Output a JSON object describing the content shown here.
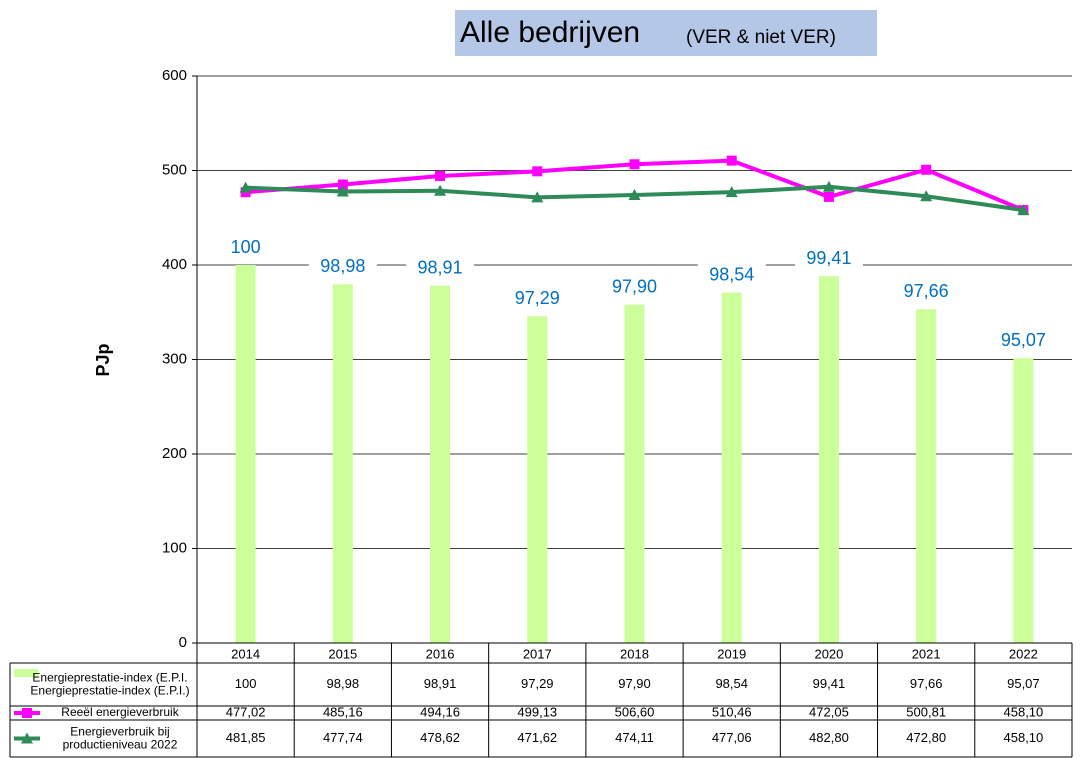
{
  "chart_data": {
    "type": "bar_line",
    "title": "Alle bedrijven",
    "subtitle": "(VER & niet VER)",
    "y_label": "PJp",
    "categories": [
      "2014",
      "2015",
      "2016",
      "2017",
      "2018",
      "2019",
      "2020",
      "2021",
      "2022"
    ],
    "ylim": [
      0,
      600
    ],
    "yticks": [
      0,
      100,
      200,
      300,
      400,
      500,
      600
    ],
    "y2lim": [
      80,
      110
    ],
    "grid": true,
    "series": [
      {
        "name": "Energieprestatie-index (E.P.I.)",
        "type": "bar",
        "axis": "y2",
        "color": "#ccff99",
        "values": [
          100,
          98.98,
          98.91,
          97.29,
          97.9,
          98.54,
          99.41,
          97.66,
          95.07
        ],
        "value_labels": [
          "100",
          "98,98",
          "98,91",
          "97,29",
          "97,90",
          "98,54",
          "99,41",
          "97,66",
          "95,07"
        ]
      },
      {
        "name": "Reeël energieverbruik",
        "type": "line",
        "color": "#ff00ff",
        "marker": "square",
        "values": [
          477.02,
          485.16,
          494.16,
          499.13,
          506.6,
          510.46,
          472.05,
          500.81,
          458.1
        ],
        "value_labels": [
          "477,02",
          "485,16",
          "494,16",
          "499,13",
          "506,60",
          "510,46",
          "472,05",
          "500,81",
          "458,10"
        ]
      },
      {
        "name": "Energieverbruik bij productieniveau 2022",
        "type": "line",
        "color": "#2e8b57",
        "marker": "triangle",
        "values": [
          481.85,
          477.74,
          478.62,
          471.62,
          474.11,
          477.06,
          482.8,
          472.8,
          458.1
        ],
        "value_labels": [
          "481,85",
          "477,74",
          "478,62",
          "471,62",
          "474,11",
          "477,06",
          "482,80",
          "472,80",
          "458,10"
        ]
      }
    ]
  }
}
